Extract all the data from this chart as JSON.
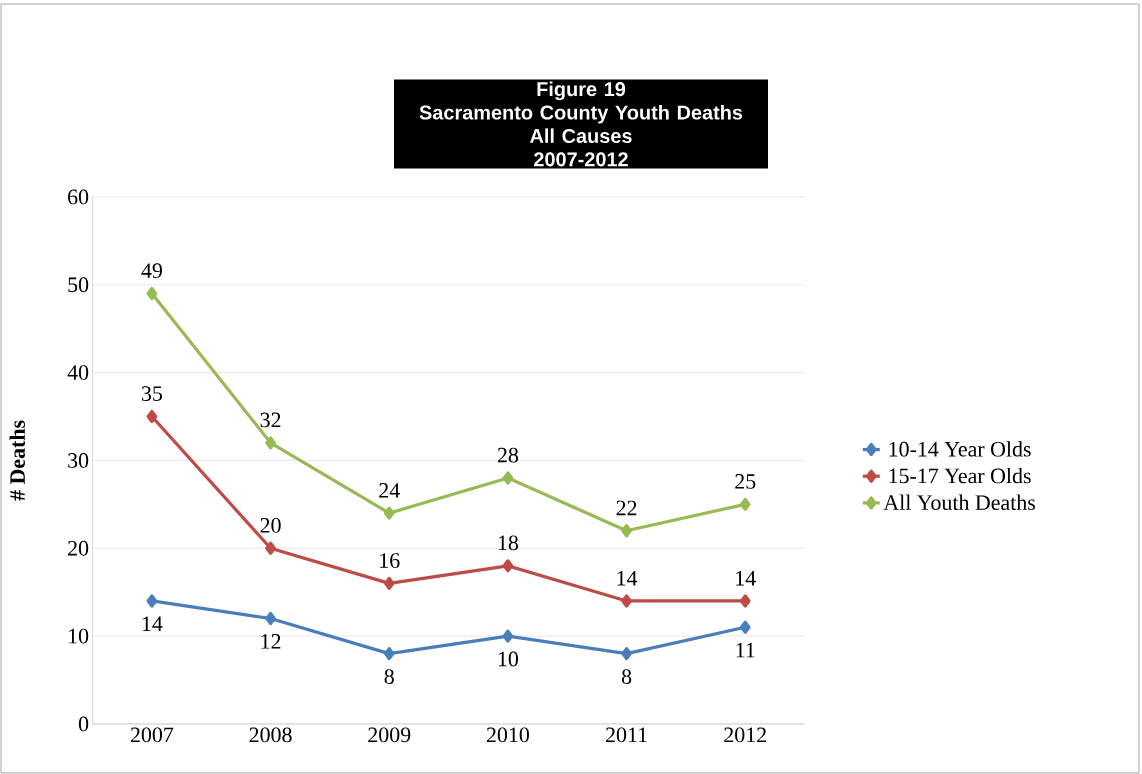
{
  "chart_data": {
    "type": "line",
    "title": "Figure 19",
    "subtitle": "Sacramento County Youth Deaths",
    "annotations": [
      "All Causes",
      "2007-2012"
    ],
    "ylabel": "# Deaths",
    "categories": [
      "2007",
      "2008",
      "2009",
      "2010",
      "2011",
      "2012"
    ],
    "series": [
      {
        "name": "10-14 Year Olds",
        "color": "#4a7ebb",
        "values": [
          14,
          12,
          8,
          10,
          8,
          11
        ]
      },
      {
        "name": "15-17 Year Olds",
        "color": "#be4b48",
        "values": [
          35,
          20,
          16,
          18,
          14,
          14
        ]
      },
      {
        "name": "All Youth Deaths",
        "color": "#98b954",
        "values": [
          49,
          32,
          24,
          28,
          22,
          25
        ]
      }
    ],
    "ylim": [
      0,
      60
    ],
    "yticks": [
      0,
      10,
      20,
      30,
      40,
      50,
      60
    ],
    "grid": "y",
    "legend": "right",
    "marker": "diamond",
    "line_style": "solid",
    "data_labels": true
  }
}
